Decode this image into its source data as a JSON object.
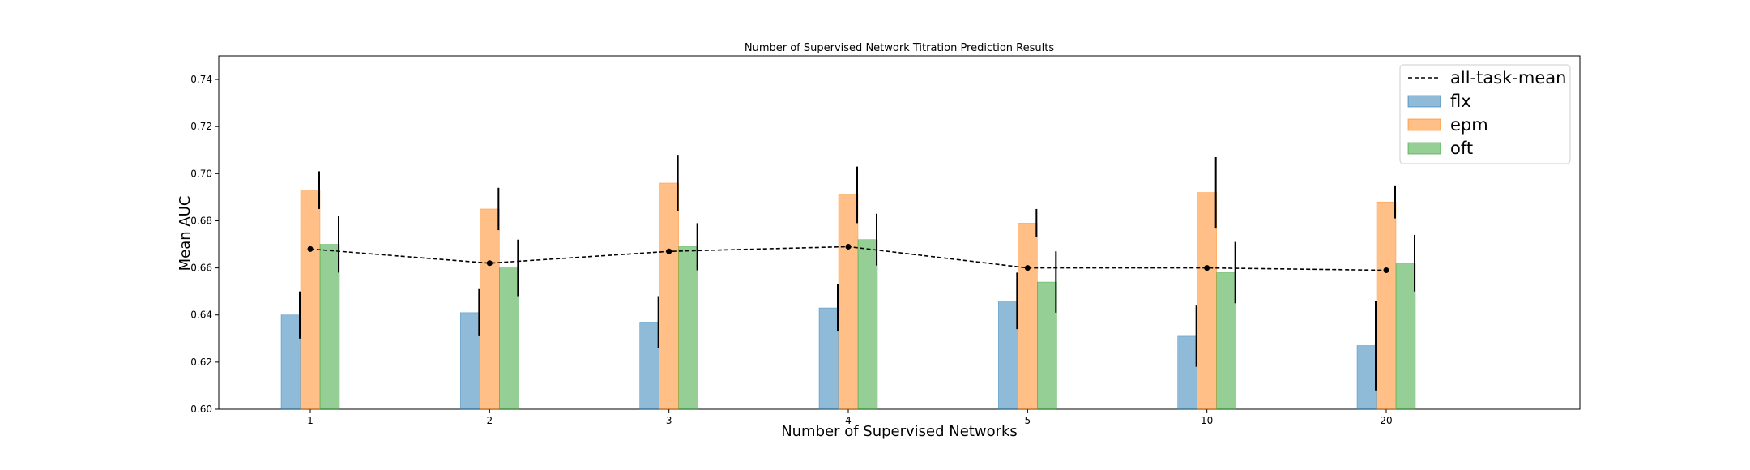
{
  "chart_data": {
    "type": "bar",
    "title": "Number of Supervised Network Titration Prediction Results",
    "xlabel": "Number of Supervised Networks",
    "ylabel": "Mean AUC",
    "categories": [
      "1",
      "2",
      "3",
      "4",
      "5",
      "10",
      "20"
    ],
    "ylim": [
      0.6,
      0.75
    ],
    "yticks": [
      "0.60",
      "0.62",
      "0.64",
      "0.66",
      "0.68",
      "0.70",
      "0.72",
      "0.74"
    ],
    "legend_position": "top-right",
    "grid": false,
    "series": [
      {
        "name": "flx",
        "color": "#1f77b4",
        "values": [
          0.64,
          0.641,
          0.637,
          0.643,
          0.646,
          0.631,
          0.627
        ],
        "errors": [
          0.01,
          0.01,
          0.011,
          0.01,
          0.012,
          0.013,
          0.019
        ]
      },
      {
        "name": "epm",
        "color": "#ff7f0e",
        "values": [
          0.693,
          0.685,
          0.696,
          0.691,
          0.679,
          0.692,
          0.688
        ],
        "errors": [
          0.008,
          0.009,
          0.012,
          0.012,
          0.006,
          0.015,
          0.007
        ]
      },
      {
        "name": "oft",
        "color": "#2ca02c",
        "values": [
          0.67,
          0.66,
          0.669,
          0.672,
          0.654,
          0.658,
          0.662
        ],
        "errors": [
          0.012,
          0.012,
          0.01,
          0.011,
          0.013,
          0.013,
          0.012
        ]
      }
    ],
    "mean_line": {
      "name": "all-task-mean",
      "color": "#000000",
      "values": [
        0.668,
        0.662,
        0.667,
        0.669,
        0.66,
        0.66,
        0.659
      ]
    }
  }
}
